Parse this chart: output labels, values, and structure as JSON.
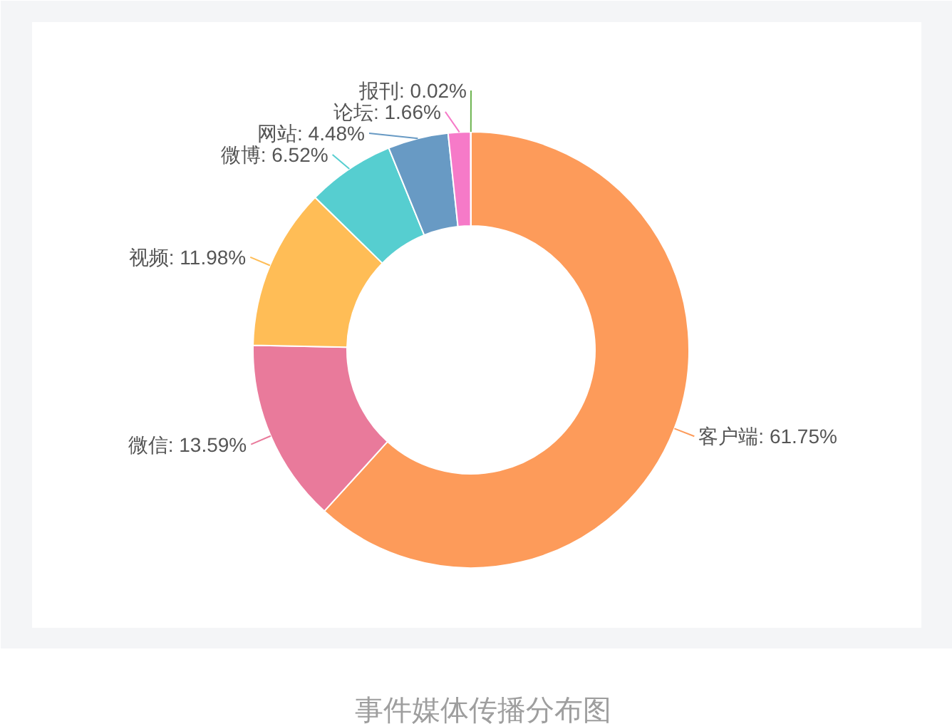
{
  "chart_data": {
    "type": "donut",
    "categories": [
      "客户端",
      "微信",
      "视频",
      "微博",
      "网站",
      "论坛",
      "报刊"
    ],
    "values": [
      61.75,
      13.59,
      11.98,
      6.52,
      4.48,
      1.66,
      0.02
    ],
    "colors": [
      "#fd9b5a",
      "#e97a9b",
      "#ffbd56",
      "#56ced0",
      "#689ac4",
      "#f67ac8",
      "#6db450"
    ],
    "value_labels": [
      "61.75%",
      "13.59%",
      "11.98%",
      "6.52%",
      "4.48%",
      "1.66%",
      "0.02%"
    ],
    "annotations": [
      "事件媒体传播分布图"
    ]
  }
}
